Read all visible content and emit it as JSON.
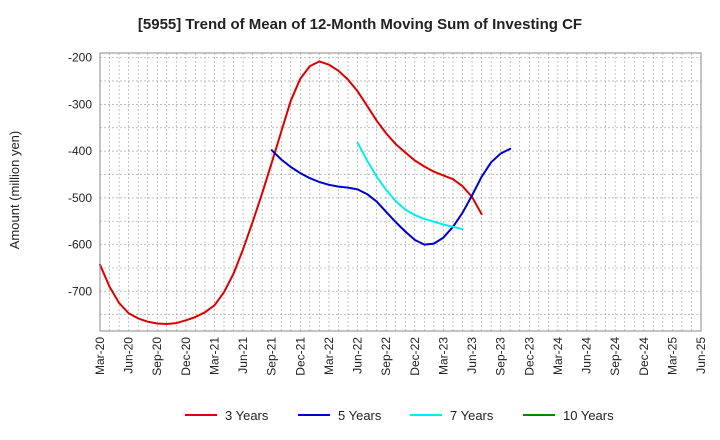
{
  "chart_data": {
    "type": "line",
    "title": "[5955]  Trend of Mean of 12-Month Moving Sum of Investing CF",
    "xlabel": "",
    "ylabel": "Amount (million yen)",
    "ylim": [
      -785,
      -190
    ],
    "yticks": [
      -200,
      -300,
      -400,
      -500,
      -600,
      -700
    ],
    "ytick_labels": [
      "-200",
      "-300",
      "-400",
      "-500",
      "-600",
      "-700"
    ],
    "x_tick_labels": [
      "Mar-20",
      "Jun-20",
      "Sep-20",
      "Dec-20",
      "Mar-21",
      "Jun-21",
      "Sep-21",
      "Dec-21",
      "Mar-22",
      "Jun-22",
      "Sep-22",
      "Dec-22",
      "Mar-23",
      "Jun-23",
      "Sep-23",
      "Dec-23",
      "Mar-24",
      "Jun-24",
      "Sep-24",
      "Dec-24",
      "Mar-25",
      "Jun-25"
    ],
    "grid": true,
    "legend_position": "bottom",
    "series": [
      {
        "name": "3 Years",
        "color": "#dd0000",
        "points": [
          [
            0,
            -643
          ],
          [
            1,
            -690
          ],
          [
            2,
            -725
          ],
          [
            3,
            -747
          ],
          [
            4,
            -758
          ],
          [
            5,
            -765
          ],
          [
            6,
            -769
          ],
          [
            7,
            -770
          ],
          [
            8,
            -768
          ],
          [
            9,
            -762
          ],
          [
            10,
            -755
          ],
          [
            11,
            -745
          ],
          [
            12,
            -730
          ],
          [
            13,
            -702
          ],
          [
            14,
            -662
          ],
          [
            15,
            -610
          ],
          [
            16,
            -552
          ],
          [
            17,
            -490
          ],
          [
            18,
            -425
          ],
          [
            19,
            -358
          ],
          [
            20,
            -292
          ],
          [
            21,
            -245
          ],
          [
            22,
            -218
          ],
          [
            23,
            -208
          ],
          [
            24,
            -215
          ],
          [
            25,
            -228
          ],
          [
            26,
            -247
          ],
          [
            27,
            -272
          ],
          [
            28,
            -303
          ],
          [
            29,
            -335
          ],
          [
            30,
            -362
          ],
          [
            31,
            -385
          ],
          [
            32,
            -403
          ],
          [
            33,
            -420
          ],
          [
            34,
            -433
          ],
          [
            35,
            -444
          ],
          [
            36,
            -452
          ],
          [
            37,
            -460
          ],
          [
            38,
            -475
          ],
          [
            39,
            -498
          ],
          [
            40,
            -535
          ]
        ]
      },
      {
        "name": "5 Years",
        "color": "#0000cc",
        "points": [
          [
            18,
            -398
          ],
          [
            19,
            -418
          ],
          [
            20,
            -434
          ],
          [
            21,
            -447
          ],
          [
            22,
            -458
          ],
          [
            23,
            -466
          ],
          [
            24,
            -472
          ],
          [
            25,
            -476
          ],
          [
            26,
            -478
          ],
          [
            27,
            -482
          ],
          [
            28,
            -492
          ],
          [
            29,
            -508
          ],
          [
            30,
            -530
          ],
          [
            31,
            -552
          ],
          [
            32,
            -572
          ],
          [
            33,
            -590
          ],
          [
            34,
            -600
          ],
          [
            35,
            -598
          ],
          [
            36,
            -585
          ],
          [
            37,
            -562
          ],
          [
            38,
            -532
          ],
          [
            39,
            -495
          ],
          [
            40,
            -455
          ],
          [
            41,
            -424
          ],
          [
            42,
            -405
          ],
          [
            43,
            -395
          ]
        ]
      },
      {
        "name": "7 Years",
        "color": "#00eeee",
        "points": [
          [
            27,
            -382
          ],
          [
            28,
            -420
          ],
          [
            29,
            -455
          ],
          [
            30,
            -483
          ],
          [
            31,
            -507
          ],
          [
            32,
            -525
          ],
          [
            33,
            -537
          ],
          [
            34,
            -545
          ],
          [
            35,
            -551
          ],
          [
            36,
            -557
          ],
          [
            37,
            -562
          ],
          [
            38,
            -567
          ]
        ]
      },
      {
        "name": "10 Years",
        "color": "#008800",
        "points": []
      }
    ]
  }
}
